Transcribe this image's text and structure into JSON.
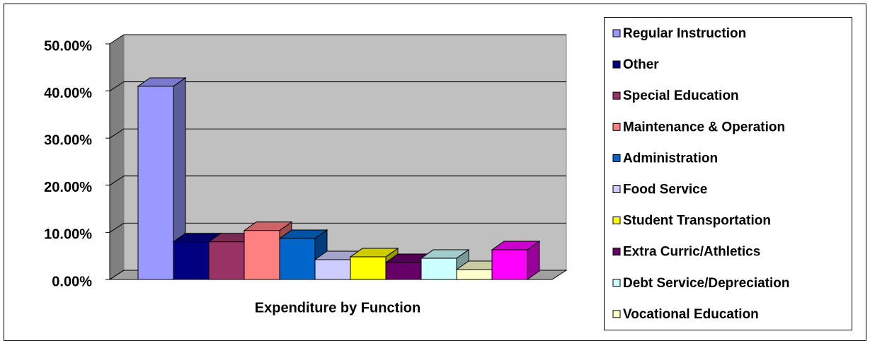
{
  "chart_data": {
    "type": "bar3d",
    "categories": [
      "Expenditure by Function"
    ],
    "series": [
      {
        "name": "Regular Instruction",
        "color": "#9999FF",
        "values": [
          41
        ]
      },
      {
        "name": "Other",
        "color": "#000080",
        "values": [
          8
        ]
      },
      {
        "name": "Special Education",
        "color": "#993366",
        "values": [
          8
        ]
      },
      {
        "name": "Maintenance & Operation",
        "color": "#FF8080",
        "values": [
          10.4
        ]
      },
      {
        "name": "Administration",
        "color": "#0066CC",
        "values": [
          8.7
        ]
      },
      {
        "name": "Food Service",
        "color": "#CCCCFF",
        "values": [
          4.2
        ]
      },
      {
        "name": "Student Transportation",
        "color": "#FFFF00",
        "values": [
          4.8
        ]
      },
      {
        "name": "Extra Curric/Athletics",
        "color": "#660066",
        "values": [
          3.6
        ]
      },
      {
        "name": "Debt Service/Depreciation",
        "color": "#CCFFFF",
        "values": [
          4.5
        ]
      },
      {
        "name": "Vocational Education",
        "color": "#FFFFCC",
        "values": [
          2.1
        ]
      },
      {
        "name": null,
        "color": "#FF00FF",
        "values": [
          6.3
        ]
      }
    ],
    "ylim": [
      0,
      50
    ],
    "yticks": [
      {
        "value": 0,
        "label": "0.00%"
      },
      {
        "value": 10,
        "label": "10.00%"
      },
      {
        "value": 20,
        "label": "20.00%"
      },
      {
        "value": 30,
        "label": "30.00%"
      },
      {
        "value": 40,
        "label": "40.00%"
      },
      {
        "value": 50,
        "label": "50.00%"
      }
    ],
    "grid": true,
    "legend": "right"
  }
}
